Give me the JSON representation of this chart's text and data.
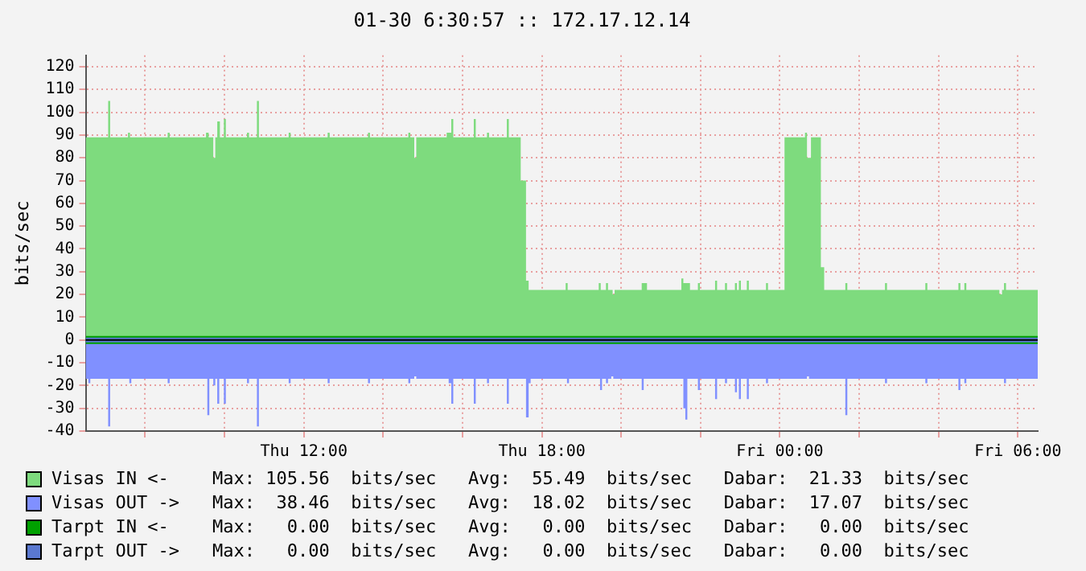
{
  "chart_data": {
    "type": "area",
    "title": "01-30 6:30:57 :: 172.17.12.14",
    "ylabel": "bits/sec",
    "xlim": [
      "--01-29T06:30",
      "--01-30T06:30"
    ],
    "xticks": [
      {
        "value": "--01-29T08:00",
        "label": null
      },
      {
        "value": "--01-29T10:00",
        "label": null
      },
      {
        "value": "--01-29T12:00",
        "label": "Thu 12:00"
      },
      {
        "value": "--01-29T14:00",
        "label": null
      },
      {
        "value": "--01-29T16:00",
        "label": null
      },
      {
        "value": "--01-29T18:00",
        "label": "Thu 18:00"
      },
      {
        "value": "--01-29T20:00",
        "label": null
      },
      {
        "value": "--01-29T22:00",
        "label": null
      },
      {
        "value": "--01-30T00:00",
        "label": "Fri 00:00"
      },
      {
        "value": "--01-30T02:00",
        "label": null
      },
      {
        "value": "--01-30T04:00",
        "label": null
      },
      {
        "value": "--01-30T06:00",
        "label": "Fri 06:00"
      }
    ],
    "ylim": [
      -40,
      125
    ],
    "yticks": [
      -40,
      -30,
      -20,
      -10,
      0,
      10,
      20,
      30,
      40,
      50,
      60,
      70,
      80,
      90,
      100,
      110,
      120
    ],
    "grid": true,
    "legend": "bottom",
    "ref_lines": [
      {
        "axis": "y",
        "value": 0,
        "color": "#000000"
      }
    ],
    "annotations": [
      "Max: 105.56  bits/sec   Avg:  55.49  bits/sec   Dabar:  21.33  bits/sec",
      "Max:  38.46  bits/sec   Avg:  18.02  bits/sec   Dabar:  17.07  bits/sec",
      "Max:   0.00  bits/sec   Avg:   0.00  bits/sec   Dabar:   0.00  bits/sec",
      "Max:   0.00  bits/sec   Avg:   0.00  bits/sec   Dabar:   0.00  bits/sec"
    ],
    "series": [
      {
        "name": "Visas IN <-",
        "color": "#7edb7e",
        "x": [
          "--01-29T06:30",
          "--01-29T07:04",
          "--01-29T07:07",
          "--01-29T07:34",
          "--01-29T07:37",
          "--01-29T08:34",
          "--01-29T08:37",
          "--01-29T09:32",
          "--01-29T09:36",
          "--01-29T09:43",
          "--01-29T09:46",
          "--01-29T09:49",
          "--01-29T09:53",
          "--01-29T09:59",
          "--01-29T10:02",
          "--01-29T10:34",
          "--01-29T10:37",
          "--01-29T10:49",
          "--01-29T10:52",
          "--01-29T11:37",
          "--01-29T11:40",
          "--01-29T12:36",
          "--01-29T12:39",
          "--01-29T13:37",
          "--01-29T13:40",
          "--01-29T14:38",
          "--01-29T14:41",
          "--01-29T14:47",
          "--01-29T14:50",
          "--01-29T15:36",
          "--01-29T15:43",
          "--01-29T15:46",
          "--01-29T16:17",
          "--01-29T16:20",
          "--01-29T16:37",
          "--01-29T16:40",
          "--01-29T17:07",
          "--01-29T17:10",
          "--01-29T17:28",
          "--01-29T17:36",
          "--01-29T17:40",
          "--01-29T18:36",
          "--01-29T18:39",
          "--01-29T19:26",
          "--01-29T19:29",
          "--01-29T19:37",
          "--01-29T19:40",
          "--01-29T19:47",
          "--01-29T19:50",
          "--01-29T20:31",
          "--01-29T20:39",
          "--01-29T21:31",
          "--01-29T21:34",
          "--01-29T21:44",
          "--01-29T21:56",
          "--01-29T21:59",
          "--01-29T22:22",
          "--01-29T22:25",
          "--01-29T22:37",
          "--01-29T22:40",
          "--01-29T22:52",
          "--01-29T22:55",
          "--01-29T22:58",
          "--01-29T23:01",
          "--01-29T23:10",
          "--01-29T23:13",
          "--01-29T23:39",
          "--01-29T23:42",
          "--01-30T00:07",
          "--01-30T00:38",
          "--01-30T00:41",
          "--01-30T00:47",
          "--01-30T01:02",
          "--01-30T01:07",
          "--01-30T01:39",
          "--01-30T01:42",
          "--01-30T02:39",
          "--01-30T02:42",
          "--01-30T03:40",
          "--01-30T03:43",
          "--01-30T04:30",
          "--01-30T04:33",
          "--01-30T04:39",
          "--01-30T04:42",
          "--01-30T05:32",
          "--01-30T05:36",
          "--01-30T05:39",
          "--01-30T05:42",
          "--01-30T06:30"
        ],
        "values": [
          89,
          105,
          89,
          91,
          89,
          91,
          89,
          91,
          89,
          80,
          89,
          96,
          89,
          97,
          89,
          91,
          89,
          105,
          89,
          91,
          89,
          91,
          89,
          91,
          89,
          91,
          89,
          80,
          89,
          91,
          97,
          89,
          97,
          89,
          91,
          89,
          97,
          89,
          70,
          26,
          22,
          25,
          22,
          25,
          22,
          25,
          22,
          20,
          22,
          25,
          22,
          27,
          25,
          22,
          25,
          22,
          26,
          22,
          25,
          22,
          25,
          22,
          26,
          22,
          26,
          22,
          25,
          22,
          89,
          91,
          80,
          89,
          32,
          22,
          25,
          22,
          25,
          22,
          25,
          22,
          25,
          22,
          25,
          22,
          20,
          22,
          25,
          22,
          22
        ]
      },
      {
        "name": "Visas OUT ->",
        "color": "#8090ff",
        "x": [
          "--01-29T06:30",
          "--01-29T06:34",
          "--01-29T06:37",
          "--01-29T07:04",
          "--01-29T07:07",
          "--01-29T07:36",
          "--01-29T07:39",
          "--01-29T08:34",
          "--01-29T08:37",
          "--01-29T09:34",
          "--01-29T09:37",
          "--01-29T09:43",
          "--01-29T09:46",
          "--01-29T09:49",
          "--01-29T09:52",
          "--01-29T09:59",
          "--01-29T10:02",
          "--01-29T10:34",
          "--01-29T10:37",
          "--01-29T10:49",
          "--01-29T10:52",
          "--01-29T11:37",
          "--01-29T11:40",
          "--01-29T12:36",
          "--01-29T12:39",
          "--01-29T13:37",
          "--01-29T13:40",
          "--01-29T14:38",
          "--01-29T14:41",
          "--01-29T14:47",
          "--01-29T14:50",
          "--01-29T15:39",
          "--01-29T15:43",
          "--01-29T15:46",
          "--01-29T16:17",
          "--01-29T16:20",
          "--01-29T16:37",
          "--01-29T16:40",
          "--01-29T17:07",
          "--01-29T17:10",
          "--01-29T17:36",
          "--01-29T17:40",
          "--01-29T17:43",
          "--01-29T18:38",
          "--01-29T18:41",
          "--01-29T19:28",
          "--01-29T19:31",
          "--01-29T19:37",
          "--01-29T19:40",
          "--01-29T19:45",
          "--01-29T19:48",
          "--01-29T20:31",
          "--01-29T20:34",
          "--01-29T21:34",
          "--01-29T21:37",
          "--01-29T21:40",
          "--01-29T21:56",
          "--01-29T21:59",
          "--01-29T22:22",
          "--01-29T22:25",
          "--01-29T22:37",
          "--01-29T22:40",
          "--01-29T22:52",
          "--01-29T22:55",
          "--01-29T22:58",
          "--01-29T23:01",
          "--01-29T23:10",
          "--01-29T23:13",
          "--01-29T23:39",
          "--01-29T23:42",
          "--01-30T00:41",
          "--01-30T00:44",
          "--01-30T01:39",
          "--01-30T01:42",
          "--01-30T02:39",
          "--01-30T02:42",
          "--01-30T03:40",
          "--01-30T03:43",
          "--01-30T04:30",
          "--01-30T04:33",
          "--01-30T04:39",
          "--01-30T04:42",
          "--01-30T05:39",
          "--01-30T05:42",
          "--01-30T06:30"
        ],
        "values": [
          -17,
          -19,
          -17,
          -38,
          -17,
          -19,
          -17,
          -19,
          -17,
          -33,
          -17,
          -20,
          -17,
          -28,
          -17,
          -28,
          -17,
          -19,
          -17,
          -38,
          -17,
          -19,
          -17,
          -19,
          -17,
          -19,
          -17,
          -19,
          -17,
          -16,
          -17,
          -19,
          -28,
          -17,
          -28,
          -17,
          -19,
          -17,
          -28,
          -17,
          -34,
          -19,
          -17,
          -19,
          -17,
          -22,
          -17,
          -19,
          -17,
          -16,
          -17,
          -22,
          -17,
          -30,
          -35,
          -17,
          -22,
          -17,
          -26,
          -17,
          -19,
          -17,
          -23,
          -17,
          -26,
          -17,
          -26,
          -17,
          -19,
          -17,
          -16,
          -17,
          -33,
          -17,
          -19,
          -17,
          -19,
          -17,
          -22,
          -17,
          -19,
          -17,
          -19,
          -17,
          -17
        ]
      },
      {
        "name": "Tarpt IN <-",
        "type": "line",
        "color": "#00a000",
        "x": [
          "--01-29T06:30",
          "--01-30T06:30"
        ],
        "values": [
          0,
          0
        ]
      },
      {
        "name": "Tarpt OUT ->",
        "type": "line",
        "color": "#5a78d0",
        "x": [
          "--01-29T06:30",
          "--01-30T06:30"
        ],
        "values": [
          0,
          0
        ]
      }
    ]
  }
}
